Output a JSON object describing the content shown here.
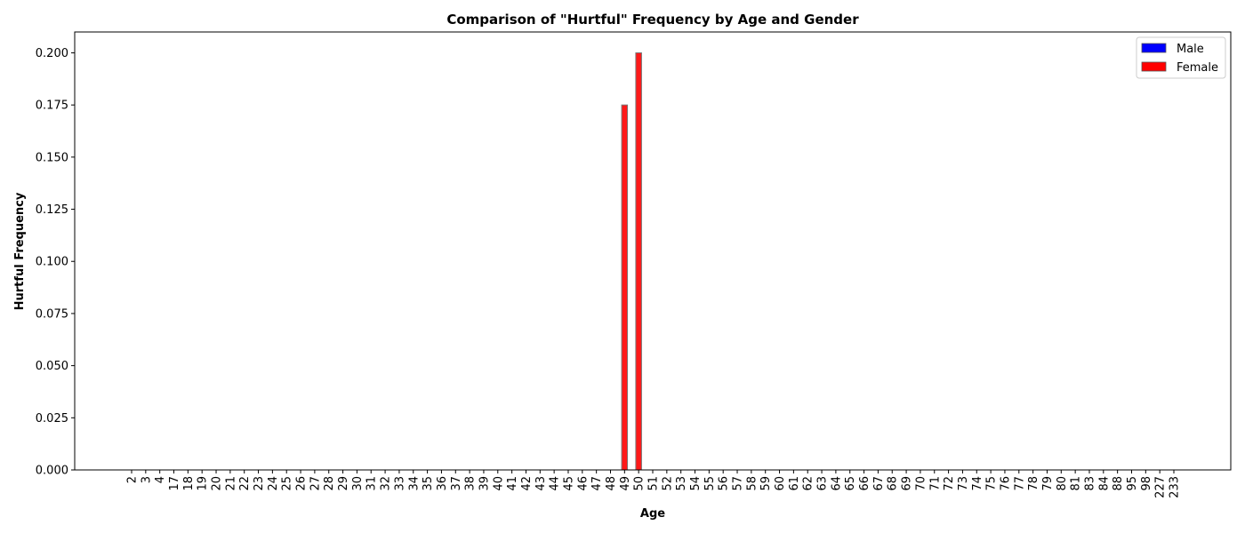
{
  "chart_data": {
    "type": "bar",
    "title": "Comparison of \"Hurtful\" Frequency by Age and Gender",
    "xlabel": "Age",
    "ylabel": "Hurtful Frequency",
    "categories": [
      "2",
      "3",
      "4",
      "17",
      "18",
      "19",
      "20",
      "21",
      "22",
      "23",
      "24",
      "25",
      "26",
      "27",
      "28",
      "29",
      "30",
      "31",
      "32",
      "33",
      "34",
      "35",
      "36",
      "37",
      "38",
      "39",
      "40",
      "41",
      "42",
      "43",
      "44",
      "45",
      "46",
      "47",
      "48",
      "49",
      "50",
      "51",
      "52",
      "53",
      "54",
      "55",
      "56",
      "57",
      "58",
      "59",
      "60",
      "61",
      "62",
      "63",
      "64",
      "65",
      "66",
      "67",
      "68",
      "69",
      "70",
      "71",
      "72",
      "73",
      "74",
      "75",
      "76",
      "77",
      "78",
      "79",
      "80",
      "81",
      "83",
      "84",
      "88",
      "95",
      "98",
      "227",
      "233"
    ],
    "ylim": [
      0,
      0.21
    ],
    "yticks": [
      "0.000",
      "0.025",
      "0.050",
      "0.075",
      "0.100",
      "0.125",
      "0.150",
      "0.175",
      "0.200"
    ],
    "grid": false,
    "legend_position": "top-right",
    "series": [
      {
        "name": "Male",
        "color": "#0000ff",
        "values": [
          0,
          0,
          0,
          0,
          0,
          0,
          0,
          0,
          0,
          0,
          0,
          0,
          0,
          0,
          0,
          0,
          0,
          0,
          0,
          0,
          0,
          0,
          0,
          0,
          0,
          0,
          0,
          0,
          0,
          0,
          0,
          0,
          0,
          0,
          0,
          0,
          0,
          0,
          0,
          0,
          0,
          0,
          0,
          0,
          0,
          0,
          0,
          0,
          0,
          0,
          0,
          0,
          0,
          0,
          0,
          0,
          0,
          0,
          0,
          0,
          0,
          0,
          0,
          0,
          0,
          0,
          0,
          0,
          0,
          0,
          0,
          0,
          0,
          0,
          0
        ]
      },
      {
        "name": "Female",
        "color": "#ff0000",
        "values": [
          0,
          0,
          0,
          0,
          0,
          0,
          0,
          0,
          0,
          0,
          0,
          0,
          0,
          0,
          0,
          0,
          0,
          0,
          0,
          0,
          0,
          0,
          0,
          0,
          0,
          0,
          0,
          0,
          0,
          0,
          0,
          0,
          0,
          0,
          0,
          0.175,
          0.2,
          0,
          0,
          0,
          0,
          0,
          0,
          0,
          0,
          0,
          0,
          0,
          0,
          0,
          0,
          0,
          0,
          0,
          0,
          0,
          0,
          0,
          0,
          0,
          0,
          0,
          0,
          0,
          0,
          0,
          0,
          0,
          0,
          0,
          0,
          0,
          0,
          0,
          0
        ]
      }
    ]
  }
}
